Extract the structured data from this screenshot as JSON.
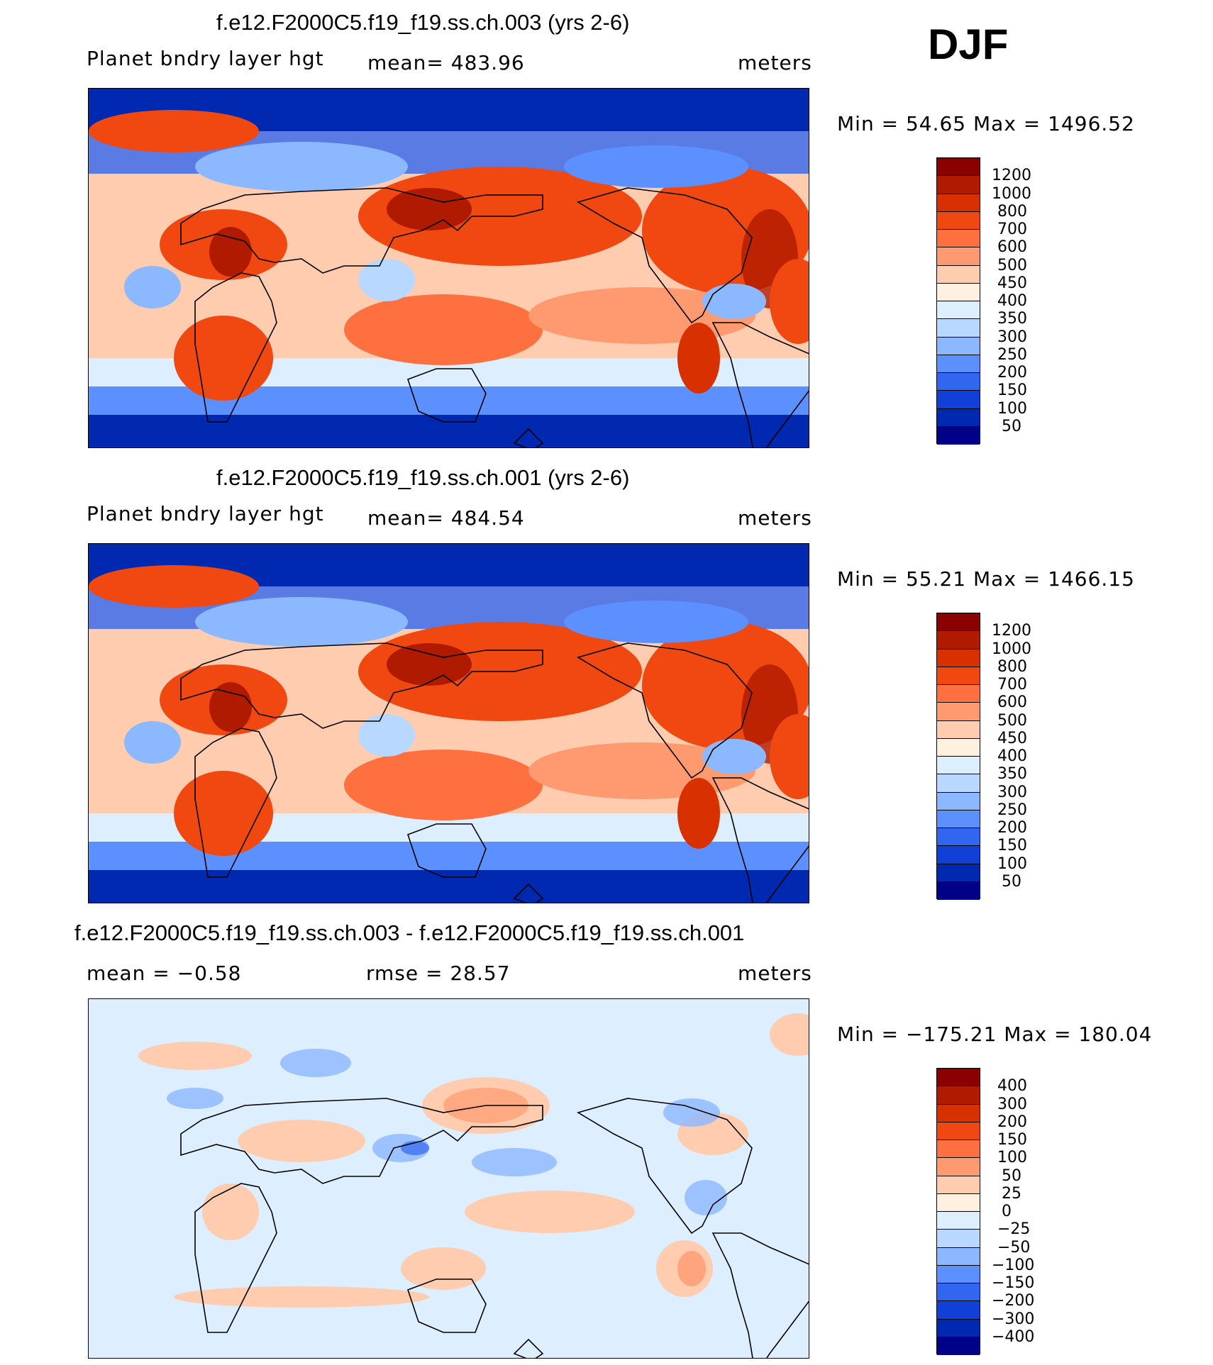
{
  "season": "DJF",
  "panels": [
    {
      "title": "f.e12.F2000C5.f19_f19.ss.ch.003 (yrs 2-6)",
      "left_label": "Planet bndry layer hgt",
      "center_label": "mean=  483.96",
      "right_label": "meters",
      "minmax": "Min =    54.65  Max  =  1496.52",
      "colorbar": {
        "levels": [
          "1200",
          "1000",
          "800",
          "700",
          "600",
          "500",
          "450",
          "400",
          "350",
          "300",
          "250",
          "200",
          "150",
          "100",
          "50"
        ],
        "colors": [
          "#8b0000",
          "#b01a00",
          "#d83000",
          "#f04810",
          "#ff7040",
          "#ff9a70",
          "#ffccb0",
          "#fff0e0",
          "#dceeff",
          "#b8d8ff",
          "#8cb8ff",
          "#5c90ff",
          "#3066f0",
          "#1040d8",
          "#0028b0",
          "#000088"
        ]
      },
      "map_type": "abs"
    },
    {
      "title": "f.e12.F2000C5.f19_f19.ss.ch.001 (yrs 2-6)",
      "left_label": "Planet bndry layer hgt",
      "center_label": "mean=  484.54",
      "right_label": "meters",
      "minmax": "Min =    55.21  Max  =  1466.15",
      "colorbar": {
        "levels": [
          "1200",
          "1000",
          "800",
          "700",
          "600",
          "500",
          "450",
          "400",
          "350",
          "300",
          "250",
          "200",
          "150",
          "100",
          "50"
        ],
        "colors": [
          "#8b0000",
          "#b01a00",
          "#d83000",
          "#f04810",
          "#ff7040",
          "#ff9a70",
          "#ffccb0",
          "#fff0e0",
          "#dceeff",
          "#b8d8ff",
          "#8cb8ff",
          "#5c90ff",
          "#3066f0",
          "#1040d8",
          "#0028b0",
          "#000088"
        ]
      },
      "map_type": "abs"
    },
    {
      "title": "f.e12.F2000C5.f19_f19.ss.ch.003 - f.e12.F2000C5.f19_f19.ss.ch.001",
      "left_label": "mean  =   −0.58",
      "center_label": "rmse  =    28.57",
      "right_label": "meters",
      "minmax": "Min  =  −175.21  Max  =  180.04",
      "colorbar": {
        "levels": [
          "400",
          "300",
          "200",
          "150",
          "100",
          "50",
          "25",
          "0",
          "−25",
          "−50",
          "−100",
          "−150",
          "−200",
          "−300",
          "−400"
        ],
        "colors": [
          "#8b0000",
          "#b01a00",
          "#d83000",
          "#f04810",
          "#ff7040",
          "#ff9a70",
          "#ffccb0",
          "#fff0e0",
          "#dceeff",
          "#b8d8ff",
          "#8cb8ff",
          "#5c90ff",
          "#3066f0",
          "#1040d8",
          "#0028b0",
          "#000088"
        ]
      },
      "map_type": "diff"
    }
  ]
}
